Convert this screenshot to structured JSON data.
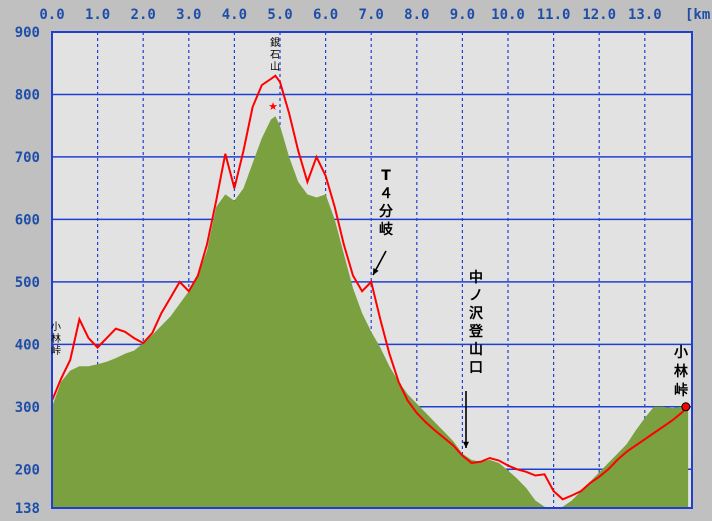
{
  "chart_data": {
    "type": "area",
    "xlabel": "",
    "ylabel": "",
    "x_unit": "[km",
    "x_ticks": [
      "0.0",
      "1.0",
      "2.0",
      "3.0",
      "4.0",
      "5.0",
      "6.0",
      "7.0",
      "8.0",
      "9.0",
      "10.0",
      "11.0",
      "12.0",
      "13.0"
    ],
    "y_ticks": [
      "138",
      "200",
      "300",
      "400",
      "500",
      "600",
      "700",
      "800",
      "900"
    ],
    "xlim": [
      0,
      14
    ],
    "ylim": [
      138,
      900
    ],
    "grid": true,
    "colors": {
      "plot_background": "#e2e2e2",
      "terrain_fill": "#7aa040",
      "route_line": "#ff0000",
      "grid": "#1f3fd0",
      "tick_text": "#1f4ea8",
      "page_background": "#c0c0c0"
    },
    "series": [
      {
        "name": "",
        "kind": "route-elevation",
        "x": [
          0,
          0.2,
          0.4,
          0.6,
          0.8,
          1.0,
          1.2,
          1.4,
          1.6,
          1.8,
          2.0,
          2.2,
          2.4,
          2.6,
          2.8,
          3.0,
          3.2,
          3.4,
          3.6,
          3.8,
          4.0,
          4.2,
          4.4,
          4.6,
          4.8,
          4.9,
          5.0,
          5.2,
          5.4,
          5.6,
          5.8,
          6.0,
          6.2,
          6.4,
          6.6,
          6.8,
          7.0,
          7.2,
          7.4,
          7.6,
          7.8,
          8.0,
          8.2,
          8.4,
          8.6,
          8.8,
          9.0,
          9.2,
          9.4,
          9.6,
          9.8,
          10.0,
          10.2,
          10.4,
          10.6,
          10.8,
          11.0,
          11.2,
          11.4,
          11.6,
          11.8,
          12.0,
          12.2,
          12.4,
          12.6,
          12.8,
          13.0,
          13.2,
          13.4,
          13.6,
          13.8,
          13.95
        ],
        "y": [
          310,
          345,
          375,
          440,
          410,
          395,
          410,
          425,
          420,
          410,
          402,
          418,
          450,
          475,
          500,
          485,
          510,
          560,
          630,
          705,
          650,
          710,
          780,
          815,
          825,
          830,
          820,
          770,
          710,
          660,
          700,
          670,
          620,
          560,
          510,
          485,
          500,
          440,
          385,
          340,
          310,
          290,
          275,
          262,
          250,
          238,
          222,
          210,
          212,
          218,
          214,
          206,
          200,
          196,
          190,
          192,
          165,
          152,
          158,
          165,
          178,
          188,
          200,
          215,
          228,
          238,
          248,
          258,
          268,
          278,
          290,
          300
        ]
      },
      {
        "name": "",
        "kind": "terrain-profile",
        "x": [
          0,
          0.2,
          0.4,
          0.6,
          0.8,
          1.0,
          1.2,
          1.4,
          1.6,
          1.8,
          2.0,
          2.2,
          2.4,
          2.6,
          2.8,
          3.0,
          3.2,
          3.4,
          3.6,
          3.8,
          4.0,
          4.2,
          4.4,
          4.6,
          4.8,
          4.9,
          5.0,
          5.2,
          5.4,
          5.6,
          5.8,
          6.0,
          6.2,
          6.4,
          6.6,
          6.8,
          7.0,
          7.2,
          7.4,
          7.6,
          7.8,
          8.0,
          8.2,
          8.4,
          8.6,
          8.8,
          9.0,
          9.2,
          9.4,
          9.6,
          9.8,
          10.0,
          10.2,
          10.4,
          10.6,
          10.8,
          11.0,
          11.2,
          11.4,
          11.6,
          11.8,
          12.0,
          12.2,
          12.4,
          12.6,
          12.8,
          13.0,
          13.2,
          13.4,
          13.6,
          13.8,
          13.95
        ],
        "y": [
          300,
          340,
          358,
          365,
          365,
          368,
          372,
          378,
          385,
          390,
          402,
          415,
          430,
          445,
          465,
          485,
          510,
          550,
          620,
          640,
          630,
          650,
          690,
          730,
          760,
          765,
          750,
          700,
          660,
          640,
          635,
          640,
          600,
          545,
          490,
          450,
          420,
          395,
          365,
          340,
          320,
          305,
          290,
          275,
          260,
          245,
          225,
          215,
          212,
          215,
          210,
          198,
          185,
          170,
          150,
          140,
          138,
          140,
          150,
          165,
          180,
          195,
          210,
          225,
          240,
          262,
          282,
          300,
          300,
          298,
          300,
          300
        ]
      }
    ],
    "annotations": [
      {
        "text": "小林峠",
        "x": 0.0,
        "y": 410
      },
      {
        "text": "銀石山",
        "x": 4.9,
        "y": 830
      },
      {
        "text": "T４分岐",
        "x": 7.0,
        "y": 500
      },
      {
        "text": "中ノ沢登山口",
        "x": 9.1,
        "y": 210
      },
      {
        "text": "小林峠",
        "x": 13.9,
        "y": 300
      }
    ]
  },
  "labels": {
    "unit": "[km",
    "ann_left": [
      "小",
      "林",
      "峠"
    ],
    "ann_peak": [
      "銀",
      "石",
      "山"
    ],
    "ann_t4": [
      "T",
      "４",
      "分",
      "岐"
    ],
    "ann_trailhead": [
      "中",
      "ノ",
      "沢",
      "登",
      "山",
      "口"
    ],
    "ann_right": [
      "小",
      "林",
      "峠"
    ]
  }
}
